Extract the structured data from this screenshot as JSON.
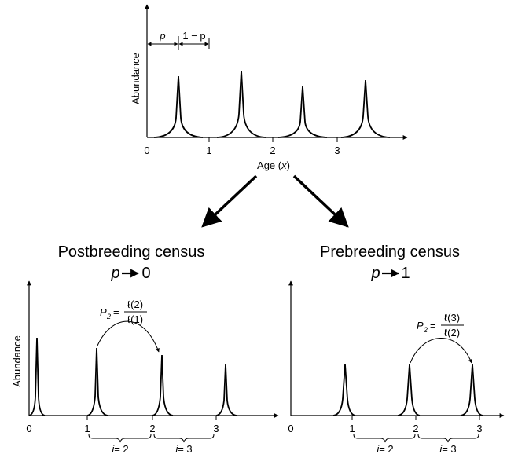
{
  "top": {
    "y_label": "Abundance",
    "x_label_main": "Age (",
    "x_label_var": "x",
    "x_label_close": ")",
    "ticks": [
      "0",
      "1",
      "2",
      "3"
    ],
    "p_label": "p",
    "one_minus_p_label": "1 − p"
  },
  "left": {
    "title": "Postbreeding census",
    "limit_var": "p",
    "limit_value": "0",
    "y_label": "Abundance",
    "ticks": [
      "0",
      "1",
      "2",
      "3"
    ],
    "formula_lhs": "P",
    "formula_sub": "2",
    "formula_eq": "=",
    "formula_num": "ℓ(2)",
    "formula_den": "ℓ(1)",
    "brace1_var": "i",
    "brace1_val": "= 2",
    "brace2_var": "i",
    "brace2_val": "= 3"
  },
  "right": {
    "title": "Prebreeding census",
    "limit_var": "p",
    "limit_value": "1",
    "ticks": [
      "0",
      "1",
      "2",
      "3"
    ],
    "formula_lhs": "P",
    "formula_sub": "2",
    "formula_eq": "=",
    "formula_num": "ℓ(3)",
    "formula_den": "ℓ(2)",
    "brace1_var": "i",
    "brace1_val": "= 2",
    "brace2_var": "i",
    "brace2_val": "= 3"
  }
}
